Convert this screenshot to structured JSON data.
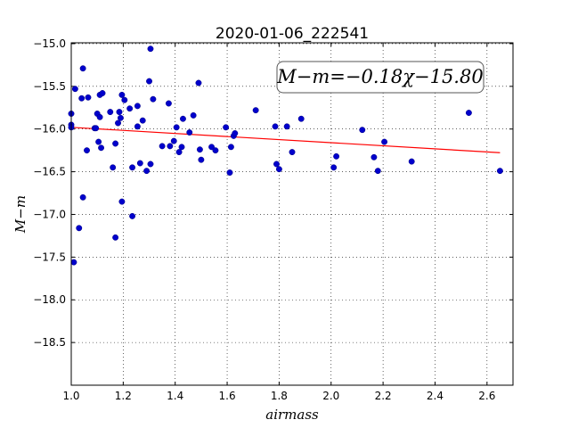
{
  "chart_data": {
    "type": "scatter",
    "title": "2020-01-06_222541",
    "xlabel": "airmass",
    "ylabel": "M−m",
    "xlim": [
      1.0,
      2.7
    ],
    "ylim": [
      -14.99,
      -19.0
    ],
    "x_ticks": [
      "1.0",
      "1.2",
      "1.4",
      "1.6",
      "1.8",
      "2.0",
      "2.2",
      "2.4",
      "2.6"
    ],
    "y_ticks": [
      "−15.0",
      "−15.5",
      "−16.0",
      "−16.5",
      "−17.0",
      "−17.5",
      "−18.0",
      "−18.5"
    ],
    "grid": true,
    "annotation": "M−m=−0.18χ−15.80",
    "fit_line": {
      "slope": -0.18,
      "intercept": -15.8,
      "x_range": [
        1.0,
        2.65
      ],
      "color": "#ff0000"
    },
    "point_color": "#0000cc",
    "points": [
      [
        1.0,
        -15.82
      ],
      [
        1.0,
        -15.95
      ],
      [
        1.0,
        -15.98
      ],
      [
        1.01,
        -17.56
      ],
      [
        1.015,
        -15.53
      ],
      [
        1.03,
        -17.16
      ],
      [
        1.04,
        -15.64
      ],
      [
        1.045,
        -16.8
      ],
      [
        1.045,
        -15.29
      ],
      [
        1.06,
        -16.25
      ],
      [
        1.065,
        -15.63
      ],
      [
        1.09,
        -15.99
      ],
      [
        1.095,
        -15.99
      ],
      [
        1.1,
        -15.82
      ],
      [
        1.105,
        -16.15
      ],
      [
        1.11,
        -15.86
      ],
      [
        1.11,
        -15.6
      ],
      [
        1.115,
        -16.22
      ],
      [
        1.12,
        -15.58
      ],
      [
        1.15,
        -15.8
      ],
      [
        1.16,
        -16.45
      ],
      [
        1.17,
        -17.27
      ],
      [
        1.17,
        -16.17
      ],
      [
        1.18,
        -15.93
      ],
      [
        1.185,
        -15.8
      ],
      [
        1.19,
        -15.87
      ],
      [
        1.195,
        -16.85
      ],
      [
        1.195,
        -15.6
      ],
      [
        1.205,
        -15.66
      ],
      [
        1.225,
        -15.76
      ],
      [
        1.235,
        -16.45
      ],
      [
        1.235,
        -17.02
      ],
      [
        1.255,
        -15.73
      ],
      [
        1.255,
        -15.97
      ],
      [
        1.265,
        -16.4
      ],
      [
        1.275,
        -15.9
      ],
      [
        1.29,
        -16.49
      ],
      [
        1.3,
        -15.44
      ],
      [
        1.305,
        -15.06
      ],
      [
        1.305,
        -16.41
      ],
      [
        1.315,
        -15.65
      ],
      [
        1.35,
        -16.2
      ],
      [
        1.375,
        -15.7
      ],
      [
        1.38,
        -16.2
      ],
      [
        1.395,
        -16.14
      ],
      [
        1.405,
        -15.98
      ],
      [
        1.415,
        -16.27
      ],
      [
        1.425,
        -16.21
      ],
      [
        1.43,
        -15.88
      ],
      [
        1.455,
        -16.04
      ],
      [
        1.47,
        -15.84
      ],
      [
        1.49,
        -15.46
      ],
      [
        1.495,
        -16.24
      ],
      [
        1.5,
        -16.36
      ],
      [
        1.54,
        -16.21
      ],
      [
        1.555,
        -16.25
      ],
      [
        1.595,
        -15.98
      ],
      [
        1.61,
        -16.51
      ],
      [
        1.615,
        -16.21
      ],
      [
        1.625,
        -16.08
      ],
      [
        1.63,
        -16.05
      ],
      [
        1.71,
        -15.78
      ],
      [
        1.785,
        -15.97
      ],
      [
        1.79,
        -16.41
      ],
      [
        1.8,
        -16.47
      ],
      [
        1.83,
        -15.97
      ],
      [
        1.85,
        -16.27
      ],
      [
        1.885,
        -15.88
      ],
      [
        2.01,
        -16.45
      ],
      [
        2.02,
        -16.32
      ],
      [
        2.12,
        -16.01
      ],
      [
        2.165,
        -16.33
      ],
      [
        2.18,
        -16.49
      ],
      [
        2.205,
        -16.15
      ],
      [
        2.31,
        -16.38
      ],
      [
        2.53,
        -15.81
      ],
      [
        2.65,
        -16.49
      ]
    ]
  }
}
